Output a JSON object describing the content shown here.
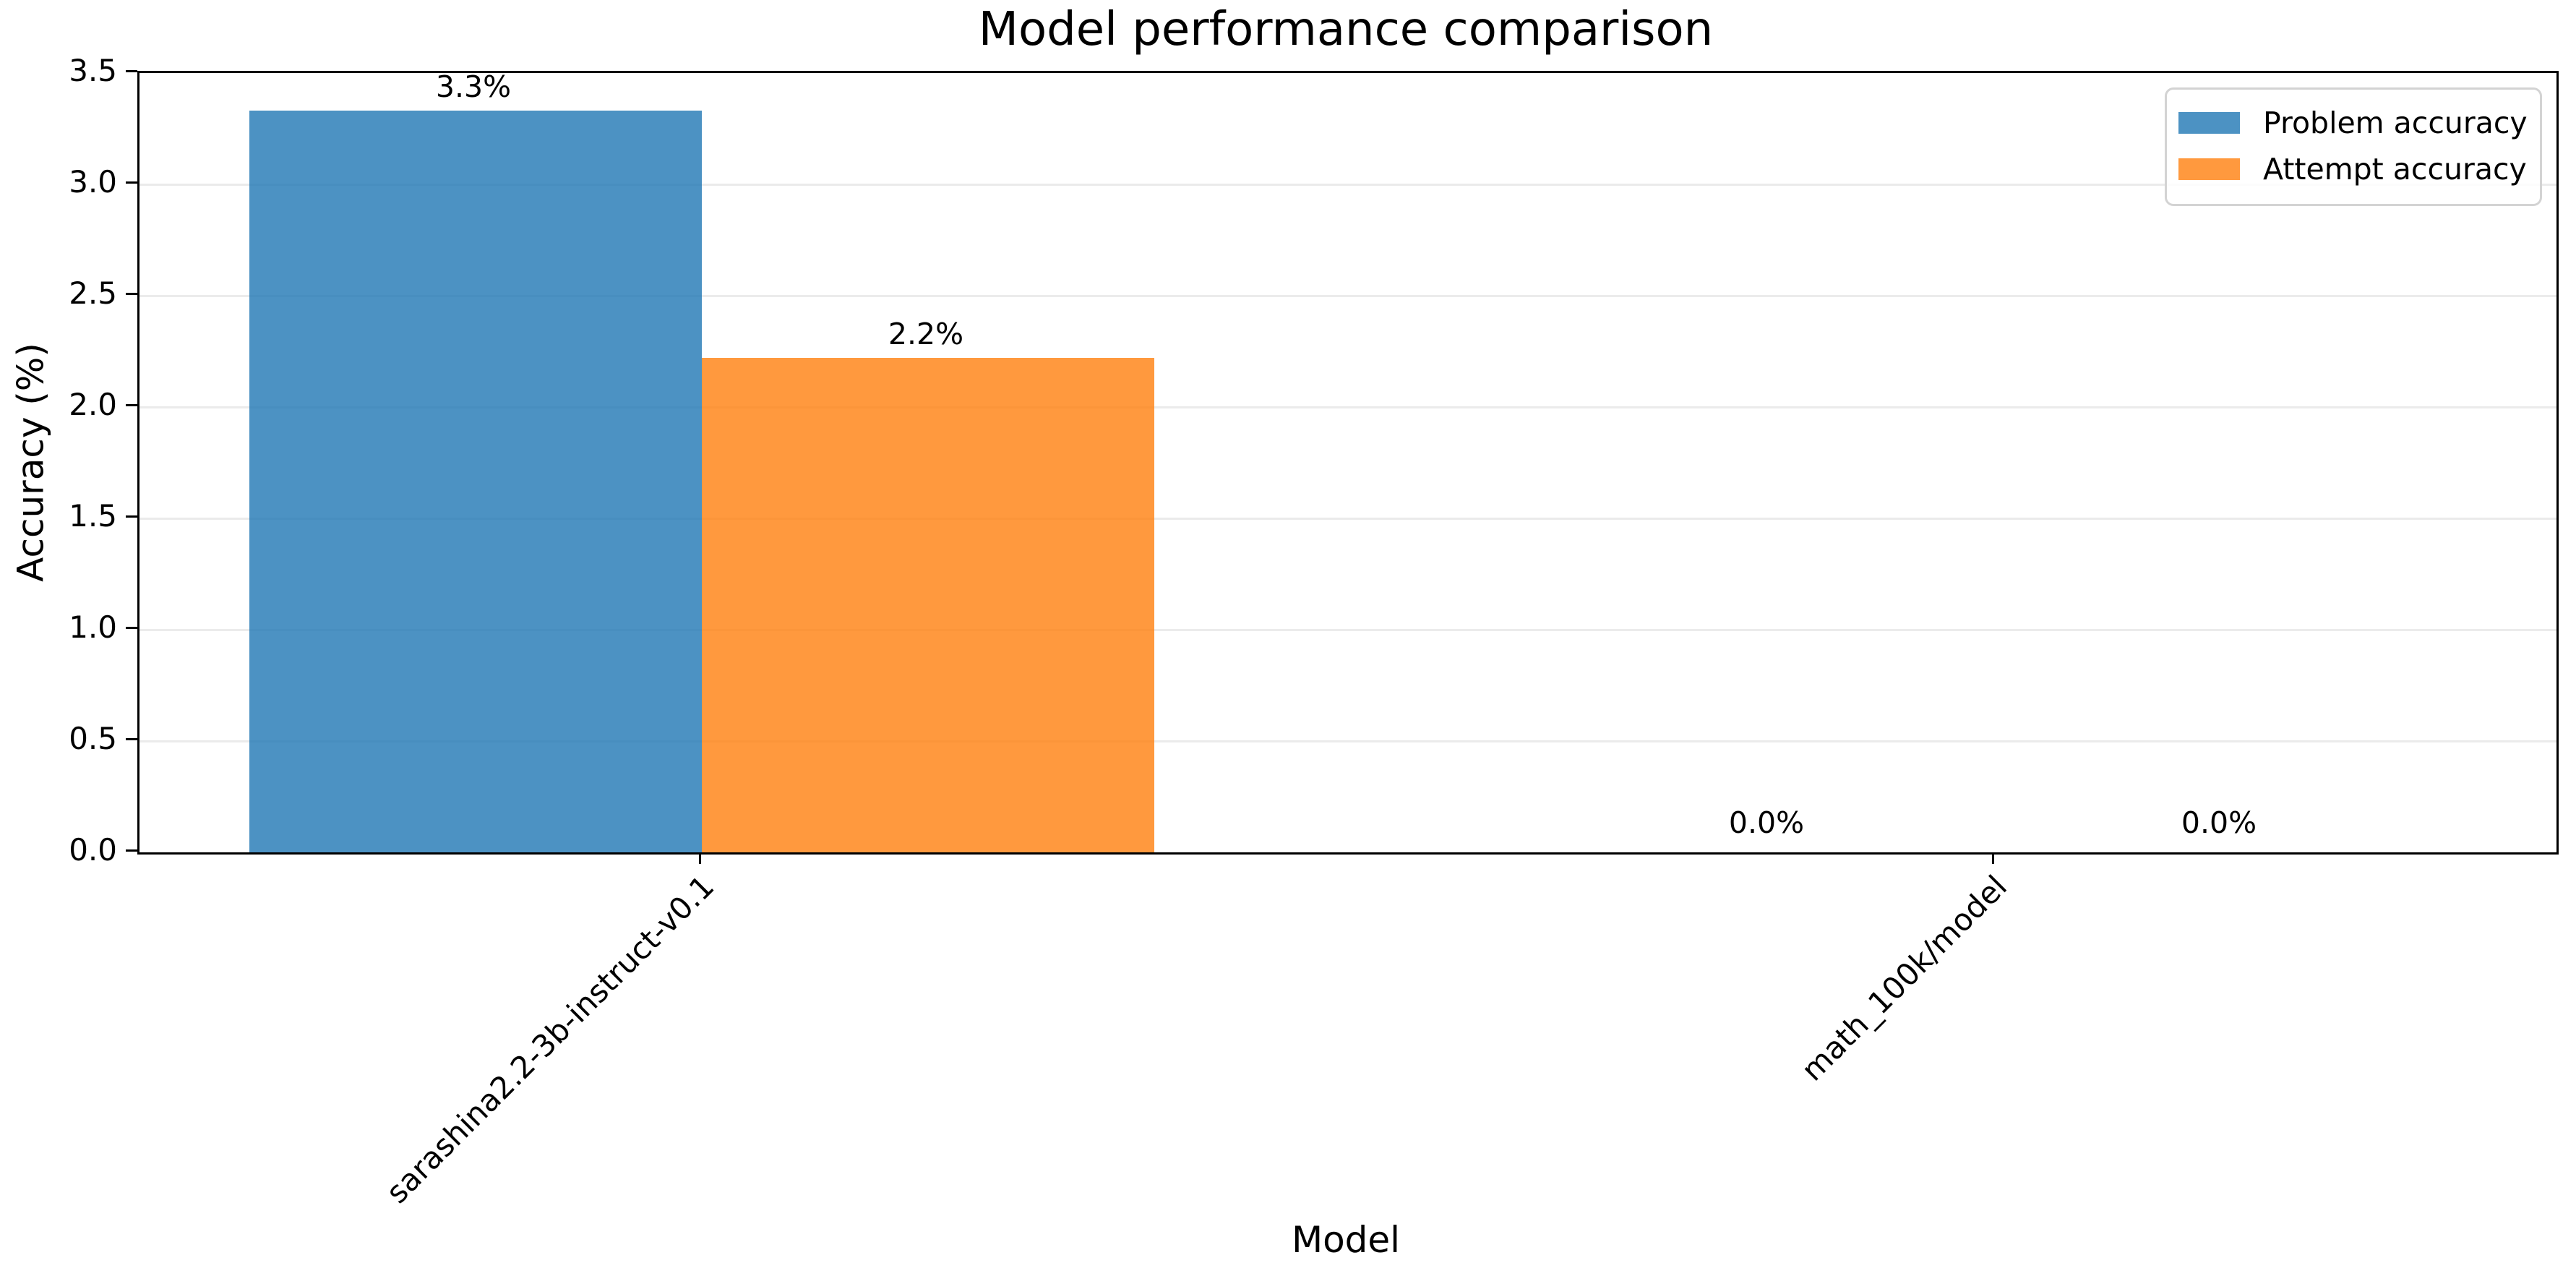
{
  "figure": {
    "title": "Model performance comparison"
  },
  "axes": {
    "xlabel": "Model",
    "ylabel": "Accuracy (%)"
  },
  "legend": {
    "position": "upper right",
    "items": [
      {
        "label": "Problem accuracy",
        "color_hex": "#1f77b4",
        "color_rgba": "rgba(31,119,180,0.8)"
      },
      {
        "label": "Attempt accuracy",
        "color_hex": "#ff7f0e",
        "color_rgba": "rgba(255,127,14,0.8)"
      }
    ]
  },
  "chart_data": {
    "type": "bar",
    "title": "Model performance comparison",
    "xlabel": "Model",
    "ylabel": "Accuracy (%)",
    "categories": [
      "sarashina2.2-3b-instruct-v0.1",
      "math_100k/model"
    ],
    "series": [
      {
        "name": "Problem accuracy",
        "color_hex": "#1f77b4",
        "color_rgba": "rgba(31,119,180,0.8)",
        "values": [
          3.33,
          0.0
        ],
        "value_labels": [
          "3.3%",
          "0.0%"
        ]
      },
      {
        "name": "Attempt accuracy",
        "color_hex": "#ff7f0e",
        "color_rgba": "rgba(255,127,14,0.8)",
        "values": [
          2.22,
          0.0
        ],
        "value_labels": [
          "2.2%",
          "0.0%"
        ]
      }
    ],
    "ylim": [
      0,
      3.5
    ],
    "yticks": [
      0.0,
      0.5,
      1.0,
      1.5,
      2.0,
      2.5,
      3.0,
      3.5
    ],
    "ytick_labels": [
      "0.0",
      "0.5",
      "1.0",
      "1.5",
      "2.0",
      "2.5",
      "3.0",
      "3.5"
    ],
    "grid": true,
    "grid_axis": "y",
    "bar_alpha": 0.8,
    "legend_position": "upper right",
    "xtick_rotation_deg": 45
  }
}
